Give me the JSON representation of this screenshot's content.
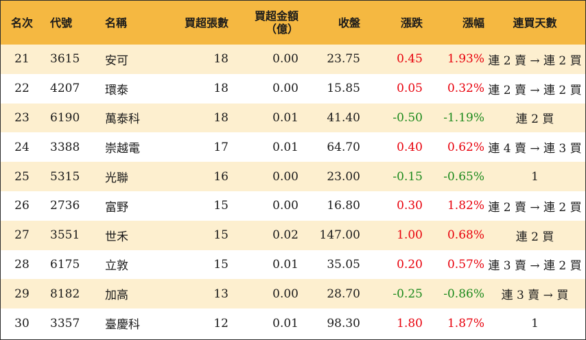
{
  "colors": {
    "header_bg": "#f5b841",
    "odd_row_bg": "#fdefcf",
    "even_row_bg": "#ffffff",
    "positive": "#e8000b",
    "negative": "#1c8a1c"
  },
  "headers": {
    "rank": "名次",
    "code": "代號",
    "name": "名稱",
    "volume": "買超張數",
    "amount_line1": "買超金額",
    "amount_line2": "（億）",
    "close": "收盤",
    "change": "漲跌",
    "change_pct": "漲幅",
    "streak": "連買天數"
  },
  "rows": [
    {
      "rank": "21",
      "code": "3615",
      "name": "安可",
      "volume": "18",
      "amount": "0.00",
      "close": "23.75",
      "change": "0.45",
      "change_pct": "1.93%",
      "streak": "連 2 賣 → 連 2 買",
      "direction": "up"
    },
    {
      "rank": "22",
      "code": "4207",
      "name": "環泰",
      "volume": "18",
      "amount": "0.00",
      "close": "15.85",
      "change": "0.05",
      "change_pct": "0.32%",
      "streak": "連 2 賣 → 連 2 買",
      "direction": "up"
    },
    {
      "rank": "23",
      "code": "6190",
      "name": "萬泰科",
      "volume": "18",
      "amount": "0.01",
      "close": "41.40",
      "change": "-0.50",
      "change_pct": "-1.19%",
      "streak": "連 2 買",
      "direction": "down"
    },
    {
      "rank": "24",
      "code": "3388",
      "name": "崇越電",
      "volume": "17",
      "amount": "0.01",
      "close": "64.70",
      "change": "0.40",
      "change_pct": "0.62%",
      "streak": "連 4 賣 → 連 3 買",
      "direction": "up"
    },
    {
      "rank": "25",
      "code": "5315",
      "name": "光聯",
      "volume": "16",
      "amount": "0.00",
      "close": "23.00",
      "change": "-0.15",
      "change_pct": "-0.65%",
      "streak": "1",
      "direction": "down"
    },
    {
      "rank": "26",
      "code": "2736",
      "name": "富野",
      "volume": "15",
      "amount": "0.00",
      "close": "16.80",
      "change": "0.30",
      "change_pct": "1.82%",
      "streak": "連 2 賣 → 連 2 買",
      "direction": "up"
    },
    {
      "rank": "27",
      "code": "3551",
      "name": "世禾",
      "volume": "15",
      "amount": "0.02",
      "close": "147.00",
      "change": "1.00",
      "change_pct": "0.68%",
      "streak": "連 2 買",
      "direction": "up"
    },
    {
      "rank": "28",
      "code": "6175",
      "name": "立敦",
      "volume": "15",
      "amount": "0.01",
      "close": "35.05",
      "change": "0.20",
      "change_pct": "0.57%",
      "streak": "連 3 賣 → 連 2 買",
      "direction": "up"
    },
    {
      "rank": "29",
      "code": "8182",
      "name": "加高",
      "volume": "13",
      "amount": "0.00",
      "close": "28.70",
      "change": "-0.25",
      "change_pct": "-0.86%",
      "streak": "連 3 賣 → 買",
      "direction": "down"
    },
    {
      "rank": "30",
      "code": "3357",
      "name": "臺慶科",
      "volume": "12",
      "amount": "0.01",
      "close": "98.30",
      "change": "1.80",
      "change_pct": "1.87%",
      "streak": "1",
      "direction": "up"
    }
  ]
}
